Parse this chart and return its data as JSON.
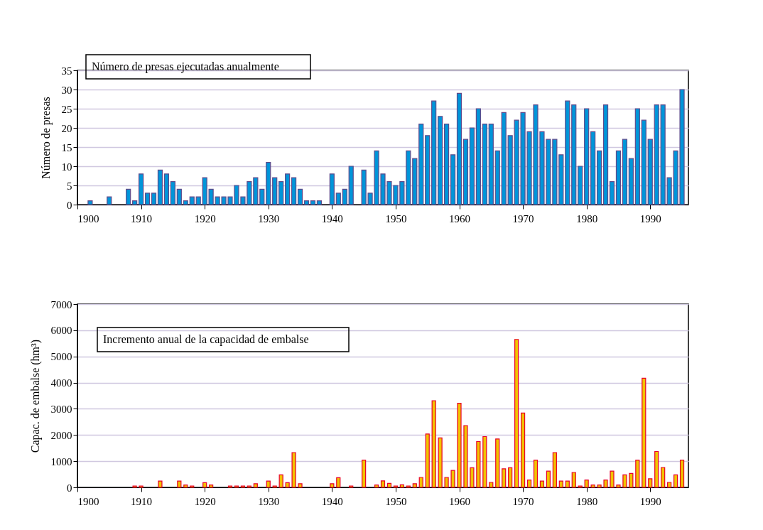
{
  "chart_data": [
    {
      "type": "bar",
      "title": "Número de presas ejecutadas anualmente",
      "ylabel": "Número de presas",
      "x": [
        1902,
        1905,
        1908,
        1909,
        1910,
        1911,
        1912,
        1913,
        1914,
        1915,
        1916,
        1917,
        1918,
        1919,
        1920,
        1921,
        1922,
        1923,
        1924,
        1925,
        1926,
        1927,
        1928,
        1929,
        1930,
        1931,
        1932,
        1933,
        1934,
        1935,
        1936,
        1937,
        1938,
        1940,
        1941,
        1942,
        1943,
        1945,
        1946,
        1947,
        1948,
        1949,
        1950,
        1951,
        1952,
        1953,
        1954,
        1955,
        1956,
        1957,
        1958,
        1959,
        1960,
        1961,
        1962,
        1963,
        1964,
        1965,
        1966,
        1967,
        1968,
        1969,
        1970,
        1971,
        1972,
        1973,
        1974,
        1975,
        1976,
        1977,
        1978,
        1979,
        1980,
        1981,
        1982,
        1983,
        1984,
        1985,
        1986,
        1987,
        1988,
        1989,
        1990,
        1991,
        1992,
        1993,
        1994,
        1995
      ],
      "series": [
        {
          "color": "#0095d9",
          "values": [
            1,
            2,
            4,
            1,
            8,
            3,
            3,
            9,
            8,
            6,
            4,
            1,
            2,
            2,
            7,
            4,
            2,
            2,
            2,
            5,
            2,
            6,
            7,
            4,
            11,
            7,
            6,
            8,
            7,
            4,
            1,
            1,
            1,
            8,
            3,
            4,
            10,
            9,
            3,
            14,
            8,
            6,
            5,
            6,
            14,
            12,
            21,
            18,
            27,
            23,
            21,
            13,
            29,
            17,
            20,
            25,
            21,
            21,
            14,
            24,
            18,
            22,
            24,
            19,
            26,
            19,
            17,
            17,
            13,
            27,
            26,
            10,
            25,
            19,
            14,
            26,
            6,
            14,
            17,
            12,
            25,
            22,
            17,
            26,
            26,
            7,
            14,
            30
          ]
        }
      ],
      "xlim": [
        1900,
        1996
      ],
      "xticks": [
        1900,
        1910,
        1920,
        1930,
        1940,
        1950,
        1960,
        1970,
        1980,
        1990
      ],
      "ylim": [
        0,
        35
      ],
      "yticks": [
        0,
        5,
        10,
        15,
        20,
        25,
        30,
        35
      ],
      "grid": "y",
      "legend": false
    },
    {
      "type": "bar",
      "title": "Incremento anual de la capacidad de embalse",
      "ylabel": "Capac. de embalse (hm³)",
      "x": [
        1909,
        1910,
        1913,
        1916,
        1917,
        1918,
        1920,
        1921,
        1924,
        1925,
        1926,
        1927,
        1928,
        1930,
        1931,
        1932,
        1933,
        1934,
        1935,
        1940,
        1941,
        1943,
        1945,
        1947,
        1948,
        1949,
        1950,
        1951,
        1952,
        1953,
        1954,
        1955,
        1956,
        1957,
        1958,
        1959,
        1960,
        1961,
        1962,
        1963,
        1964,
        1965,
        1966,
        1967,
        1968,
        1969,
        1970,
        1971,
        1972,
        1973,
        1974,
        1975,
        1976,
        1977,
        1978,
        1979,
        1980,
        1981,
        1982,
        1983,
        1984,
        1985,
        1986,
        1987,
        1988,
        1989,
        1990,
        1991,
        1992,
        1993,
        1994,
        1995
      ],
      "series": [
        {
          "color": "#f2c200",
          "values": [
            50,
            50,
            240,
            240,
            90,
            50,
            180,
            90,
            50,
            50,
            50,
            50,
            140,
            240,
            50,
            480,
            180,
            1330,
            140,
            140,
            370,
            50,
            1040,
            90,
            250,
            150,
            50,
            100,
            50,
            140,
            380,
            2040,
            3310,
            1890,
            380,
            650,
            3210,
            2360,
            750,
            1750,
            1940,
            190,
            1850,
            710,
            750,
            5650,
            2840,
            280,
            1040,
            240,
            620,
            1330,
            240,
            240,
            570,
            50,
            280,
            90,
            90,
            280,
            620,
            90,
            480,
            530,
            1040,
            4170,
            330,
            1370,
            760,
            190,
            480,
            1040
          ]
        }
      ],
      "xlim": [
        1900,
        1996
      ],
      "xticks": [
        1900,
        1910,
        1920,
        1930,
        1940,
        1950,
        1960,
        1970,
        1980,
        1990
      ],
      "ylim": [
        0,
        7000
      ],
      "yticks": [
        0,
        1000,
        2000,
        3000,
        4000,
        5000,
        6000,
        7000
      ],
      "grid": "y",
      "legend": false
    }
  ]
}
